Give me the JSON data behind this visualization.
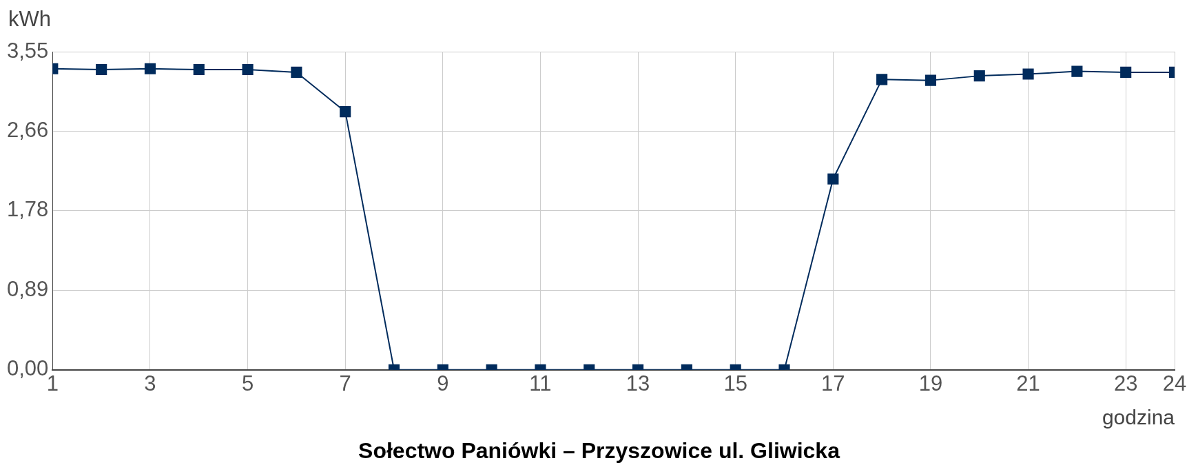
{
  "chart_data": {
    "type": "line",
    "title": "Sołectwo Paniówki – Przyszowice ul. Gliwicka",
    "xlabel": "godzina",
    "ylabel": "kWh",
    "x": [
      1,
      2,
      3,
      4,
      5,
      6,
      7,
      8,
      9,
      10,
      11,
      12,
      13,
      14,
      15,
      16,
      17,
      18,
      19,
      20,
      21,
      22,
      23,
      24
    ],
    "series": [
      {
        "color": "#002b5c",
        "values": [
          3.36,
          3.35,
          3.36,
          3.35,
          3.35,
          3.32,
          2.88,
          0,
          0,
          0,
          0,
          0,
          0,
          0,
          0,
          0,
          2.13,
          3.24,
          3.23,
          3.28,
          3.3,
          3.33,
          3.32,
          3.32
        ]
      }
    ],
    "xlim": [
      1,
      24
    ],
    "xticks": [
      1,
      3,
      5,
      7,
      9,
      11,
      13,
      15,
      17,
      19,
      21,
      23,
      24
    ],
    "ylim": [
      0,
      3.55
    ],
    "yticks": [
      {
        "value": 0,
        "label": "0,00"
      },
      {
        "value": 0.89,
        "label": "0,89"
      },
      {
        "value": 1.78,
        "label": "1,78"
      },
      {
        "value": 2.66,
        "label": "2,66"
      },
      {
        "value": 3.55,
        "label": "3,55"
      }
    ],
    "grid": true,
    "legend": false,
    "marker": "square",
    "line_style": "solid"
  }
}
